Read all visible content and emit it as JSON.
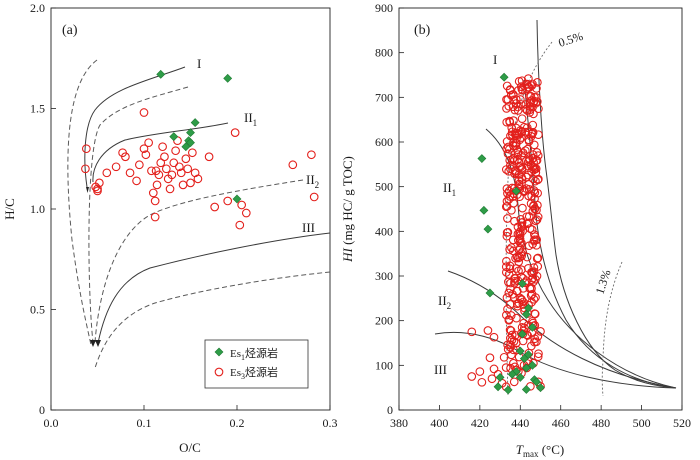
{
  "chart_data": [
    {
      "type": "scatter",
      "panel": "(a)",
      "xlabel": "O/C",
      "ylabel": "H/C",
      "xlim": [
        0,
        0.3
      ],
      "ylim": [
        0,
        2.0
      ],
      "xticks": [
        "0.0",
        "0.1",
        "0.2",
        "0.3"
      ],
      "yticks": [
        "0",
        "0.5",
        "1.0",
        "1.5",
        "2.0"
      ],
      "zone_labels": [
        "I",
        "II",
        "II",
        "III"
      ],
      "zone_subscripts": [
        "",
        "1",
        "2",
        ""
      ],
      "legend": {
        "position": "bottom-right",
        "items": [
          {
            "base": "Es",
            "sub": "1",
            "suffix": "烃源岩",
            "marker": "diamond",
            "color": "#2e9c47"
          },
          {
            "base": "Es",
            "sub": "3",
            "suffix": "烃源岩",
            "marker": "circle",
            "color": "#e3201c"
          }
        ]
      },
      "series": [
        {
          "name": "Es1烃源岩",
          "marker": "diamond",
          "color": "#2e9c47",
          "points": [
            [
              0.118,
              1.67
            ],
            [
              0.19,
              1.65
            ],
            [
              0.155,
              1.43
            ],
            [
              0.15,
              1.38
            ],
            [
              0.132,
              1.36
            ],
            [
              0.148,
              1.34
            ],
            [
              0.15,
              1.33
            ],
            [
              0.145,
              1.31
            ],
            [
              0.2,
              1.05
            ]
          ]
        },
        {
          "name": "Es3烃源岩",
          "marker": "circle",
          "color": "#e3201c",
          "points": [
            [
              0.038,
              1.3
            ],
            [
              0.037,
              1.2
            ],
            [
              0.05,
              1.09
            ],
            [
              0.048,
              1.11
            ],
            [
              0.052,
              1.13
            ],
            [
              0.05,
              1.1
            ],
            [
              0.07,
              1.21
            ],
            [
              0.077,
              1.28
            ],
            [
              0.08,
              1.26
            ],
            [
              0.085,
              1.18
            ],
            [
              0.092,
              1.14
            ],
            [
              0.095,
              1.22
            ],
            [
              0.1,
              1.3
            ],
            [
              0.1,
              1.48
            ],
            [
              0.102,
              1.27
            ],
            [
              0.105,
              1.33
            ],
            [
              0.108,
              1.19
            ],
            [
              0.11,
              1.08
            ],
            [
              0.112,
              1.04
            ],
            [
              0.114,
              1.12
            ],
            [
              0.116,
              1.17
            ],
            [
              0.118,
              1.23
            ],
            [
              0.12,
              1.31
            ],
            [
              0.122,
              1.26
            ],
            [
              0.124,
              1.2
            ],
            [
              0.126,
              1.15
            ],
            [
              0.128,
              1.1
            ],
            [
              0.13,
              1.17
            ],
            [
              0.132,
              1.23
            ],
            [
              0.134,
              1.29
            ],
            [
              0.136,
              1.34
            ],
            [
              0.138,
              1.21
            ],
            [
              0.14,
              1.18
            ],
            [
              0.142,
              1.12
            ],
            [
              0.145,
              1.25
            ],
            [
              0.147,
              1.2
            ],
            [
              0.15,
              1.13
            ],
            [
              0.152,
              1.28
            ],
            [
              0.155,
              1.18
            ],
            [
              0.158,
              1.15
            ],
            [
              0.17,
              1.26
            ],
            [
              0.176,
              1.01
            ],
            [
              0.19,
              1.04
            ],
            [
              0.198,
              1.38
            ],
            [
              0.205,
              1.02
            ],
            [
              0.203,
              0.92
            ],
            [
              0.21,
              0.98
            ],
            [
              0.26,
              1.22
            ],
            [
              0.28,
              1.27
            ],
            [
              0.283,
              1.06
            ],
            [
              0.112,
              0.96
            ],
            [
              0.06,
              1.18
            ],
            [
              0.113,
              1.19
            ]
          ]
        }
      ]
    },
    {
      "type": "scatter",
      "panel": "(b)",
      "xlabel": "T",
      "xlabel_sub": "max",
      "xlabel_unit": " (°C)",
      "ylabel": "HI",
      "ylabel_unit": " (mg HC/ g TOC)",
      "xlim": [
        380,
        520
      ],
      "ylim": [
        0,
        900
      ],
      "xticks": [
        "380",
        "400",
        "420",
        "440",
        "460",
        "480",
        "500",
        "520"
      ],
      "yticks": [
        "0",
        "100",
        "200",
        "300",
        "400",
        "500",
        "600",
        "700",
        "800",
        "900"
      ],
      "zone_labels": [
        "I",
        "II",
        "II",
        "III"
      ],
      "zone_subscripts": [
        "",
        "1",
        "2",
        ""
      ],
      "maturity_labels": [
        "0.5%",
        "1.3%"
      ],
      "series": [
        {
          "name": "Es1烃源岩",
          "marker": "diamond",
          "color": "#2e9c47",
          "points": [
            [
              432,
              745
            ],
            [
              421,
              563
            ],
            [
              422,
              447
            ],
            [
              424,
              405
            ],
            [
              425,
              262
            ],
            [
              438,
              490
            ],
            [
              441,
              283
            ],
            [
              444,
              228
            ],
            [
              443,
              214
            ],
            [
              446,
              185
            ],
            [
              441,
              170
            ],
            [
              440,
              132
            ],
            [
              444,
              124
            ],
            [
              442,
              115
            ],
            [
              446,
              100
            ],
            [
              443,
              94
            ],
            [
              438,
              86
            ],
            [
              436,
              80
            ],
            [
              430,
              73
            ],
            [
              440,
              73
            ],
            [
              447,
              68
            ],
            [
              448,
              63
            ],
            [
              450,
              50
            ],
            [
              443,
              46
            ],
            [
              434,
              45
            ],
            [
              429,
              52
            ]
          ]
        },
        {
          "name": "Es3烃源岩",
          "marker": "circle",
          "color": "#e3201c",
          "cluster": {
            "x_range": [
              433,
              449
            ],
            "y_range": [
              80,
              740
            ],
            "count": 360
          },
          "points": [
            [
              444,
              742
            ],
            [
              446,
              730
            ],
            [
              448,
              720
            ],
            [
              447,
              700
            ],
            [
              445,
              690
            ],
            [
              416,
              175
            ],
            [
              424,
              178
            ],
            [
              427,
              163
            ],
            [
              416,
              75
            ],
            [
              426,
              70
            ],
            [
              421,
              62
            ],
            [
              427,
              92
            ],
            [
              432,
              118
            ],
            [
              434,
              136
            ],
            [
              438,
              150
            ],
            [
              450,
              53
            ],
            [
              437,
              63
            ],
            [
              445,
              53
            ],
            [
              429,
              80
            ],
            [
              433,
              95
            ],
            [
              420,
              86
            ],
            [
              436,
              168
            ],
            [
              442,
              184
            ],
            [
              450,
              176
            ],
            [
              447,
              152
            ],
            [
              449,
              126
            ],
            [
              433,
              52
            ],
            [
              431,
              60
            ],
            [
              449,
              63
            ],
            [
              425,
              117
            ]
          ]
        }
      ]
    }
  ]
}
